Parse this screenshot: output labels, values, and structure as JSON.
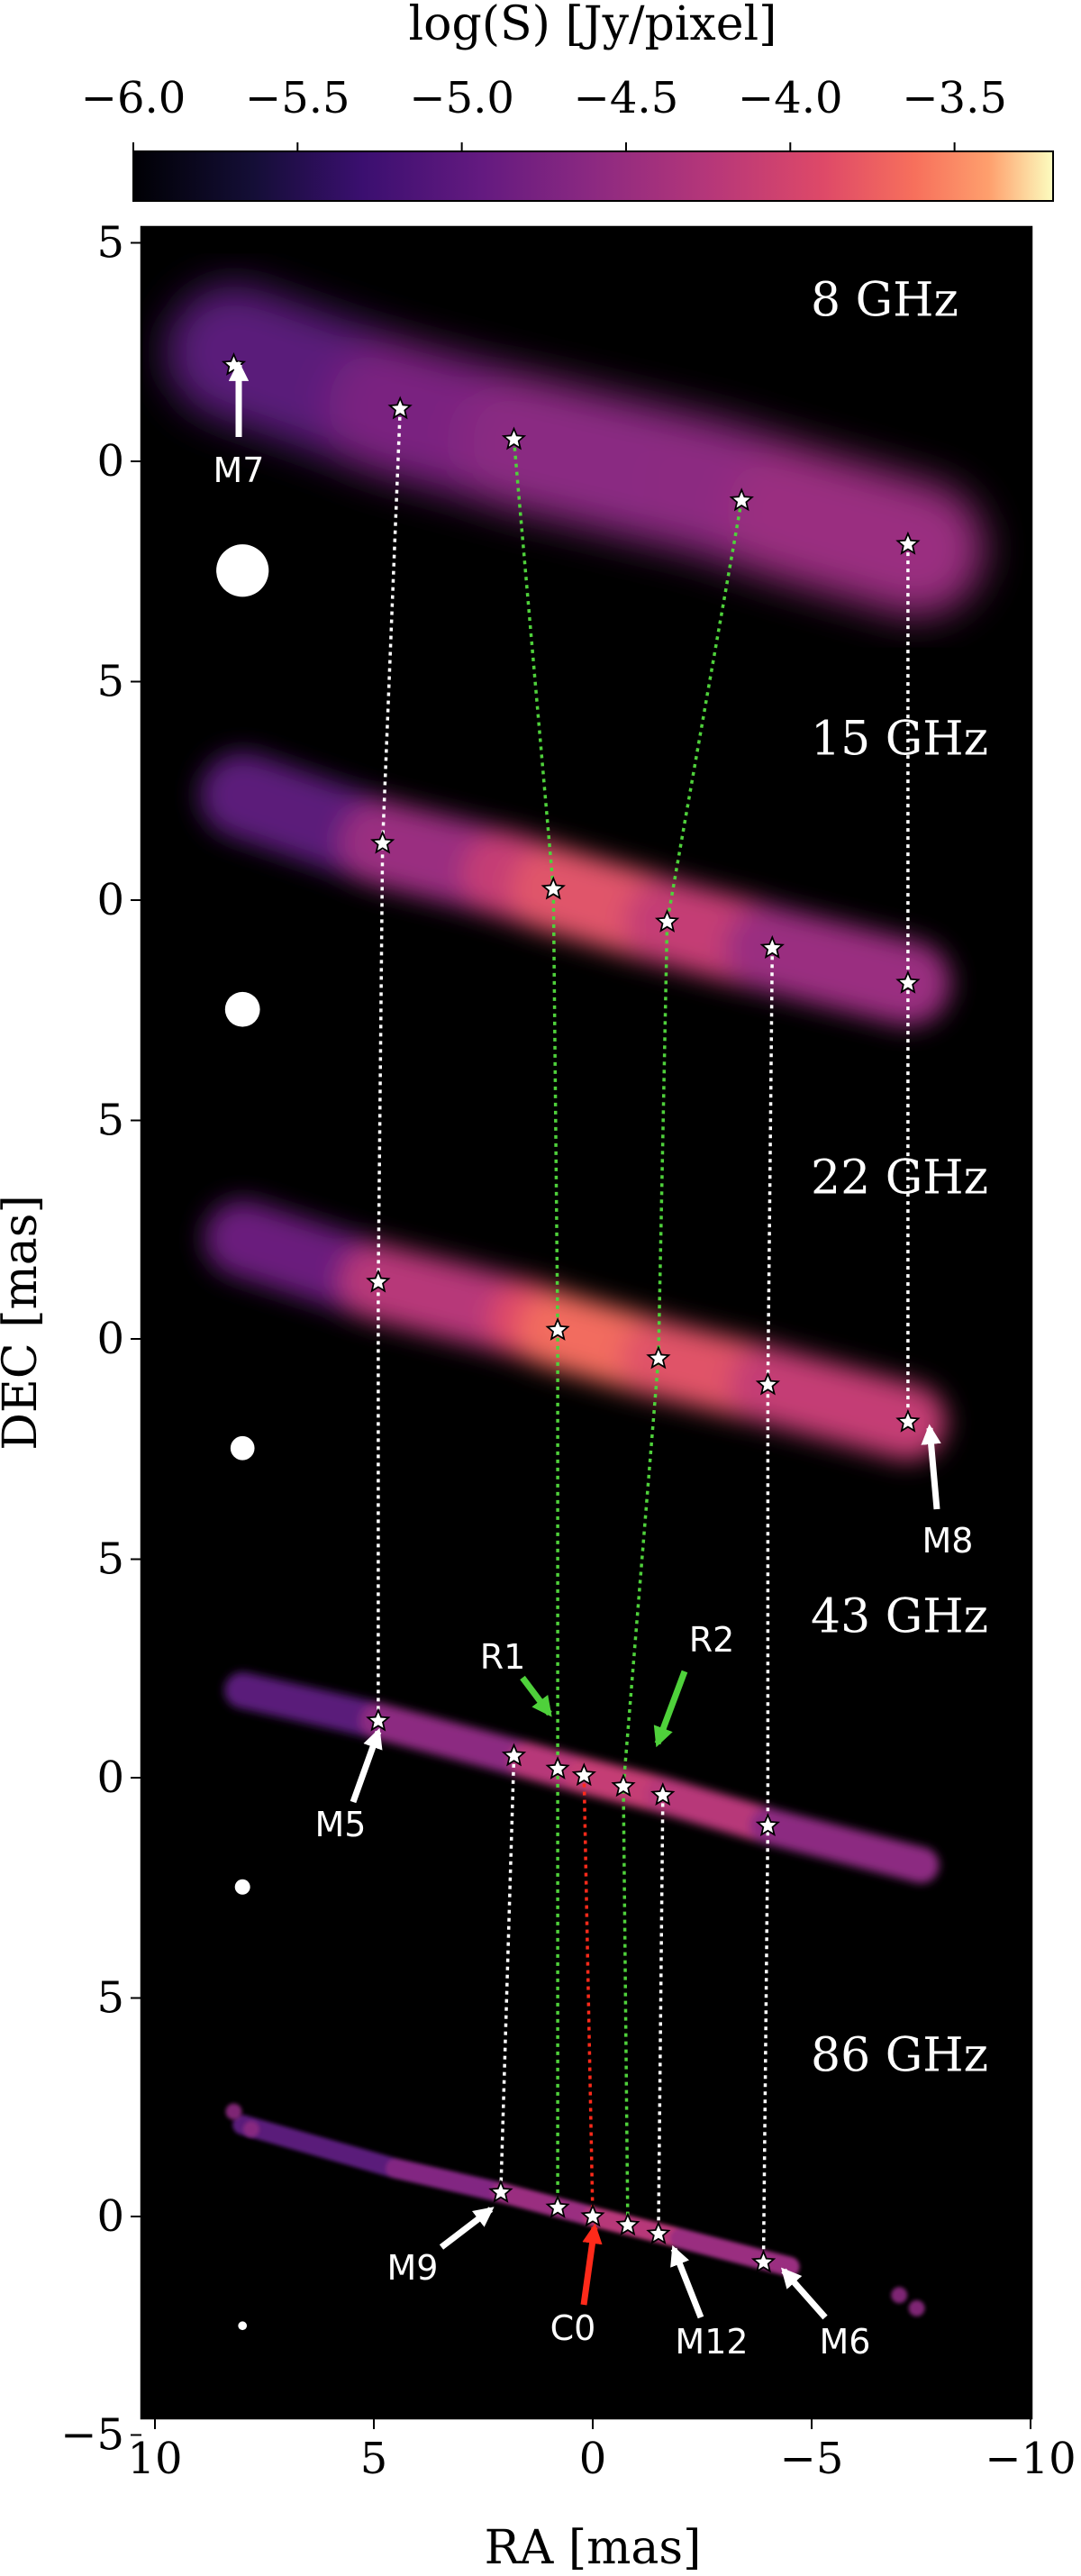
{
  "chart_data": {
    "type": "image",
    "colorbar": {
      "label": "log(S) [Jy/pixel]",
      "range": [
        -6.0,
        -3.2
      ],
      "ticks": [
        -6.0,
        -5.5,
        -5.0,
        -4.5,
        -4.0,
        -3.5
      ],
      "tick_labels": [
        "−6.0",
        "−5.5",
        "−5.0",
        "−4.5",
        "−4.0",
        "−3.5"
      ],
      "colormap": "magma",
      "placement": "top"
    },
    "xlabel": "RA [mas]",
    "ylabel": "DEC [mas]",
    "xlim": [
      10.5,
      -10.5
    ],
    "x_ticks": [
      10,
      5,
      0,
      -5,
      -10
    ],
    "x_tick_labels": [
      "10",
      "5",
      "0",
      "−5",
      "−10"
    ],
    "y_tick_labels": [
      "5",
      "0",
      "5",
      "0",
      "5",
      "0",
      "5",
      "0",
      "5",
      "0",
      "−5"
    ],
    "panels": [
      {
        "freq": "8 GHz",
        "offset": 4,
        "components": [
          {
            "x": 8.2,
            "y": 2.2
          },
          {
            "x": 4.4,
            "y": 1.2
          },
          {
            "x": 1.8,
            "y": 0.5
          },
          {
            "x": -3.4,
            "y": -0.9
          },
          {
            "x": -7.2,
            "y": -1.9
          }
        ],
        "beam_diameter": 1.2
      },
      {
        "freq": "15 GHz",
        "offset": 3,
        "components": [
          {
            "x": 4.8,
            "y": 1.3
          },
          {
            "x": 0.9,
            "y": 0.25
          },
          {
            "x": -1.7,
            "y": -0.5
          },
          {
            "x": -4.1,
            "y": -1.1
          },
          {
            "x": -7.2,
            "y": -1.9
          }
        ],
        "beam_diameter": 0.8
      },
      {
        "freq": "22 GHz",
        "offset": 2,
        "components": [
          {
            "x": 4.9,
            "y": 1.3
          },
          {
            "x": 0.8,
            "y": 0.2
          },
          {
            "x": -1.5,
            "y": -0.45
          },
          {
            "x": -4.0,
            "y": -1.05
          },
          {
            "x": -7.2,
            "y": -1.9
          }
        ],
        "beam_diameter": 0.55
      },
      {
        "freq": "43 GHz",
        "offset": 1,
        "components": [
          {
            "x": 4.9,
            "y": 1.3
          },
          {
            "x": 1.8,
            "y": 0.5
          },
          {
            "x": 0.8,
            "y": 0.2
          },
          {
            "x": 0.2,
            "y": 0.05
          },
          {
            "x": -0.7,
            "y": -0.2
          },
          {
            "x": -1.6,
            "y": -0.4
          },
          {
            "x": -4.0,
            "y": -1.1
          }
        ],
        "beam_diameter": 0.35
      },
      {
        "freq": "86 GHz",
        "offset": 0,
        "components": [
          {
            "x": 2.1,
            "y": 0.55
          },
          {
            "x": 0.8,
            "y": 0.2
          },
          {
            "x": 0.0,
            "y": 0.0
          },
          {
            "x": -0.8,
            "y": -0.2
          },
          {
            "x": -1.5,
            "y": -0.4
          },
          {
            "x": -3.9,
            "y": -1.05
          }
        ],
        "beam_diameter": 0.2
      }
    ],
    "annotations": [
      {
        "text": "M7"
      },
      {
        "text": "M8"
      },
      {
        "text": "R1"
      },
      {
        "text": "R2"
      },
      {
        "text": "M5"
      },
      {
        "text": "M9"
      },
      {
        "text": "C0"
      },
      {
        "text": "M12"
      },
      {
        "text": "M6"
      }
    ]
  }
}
